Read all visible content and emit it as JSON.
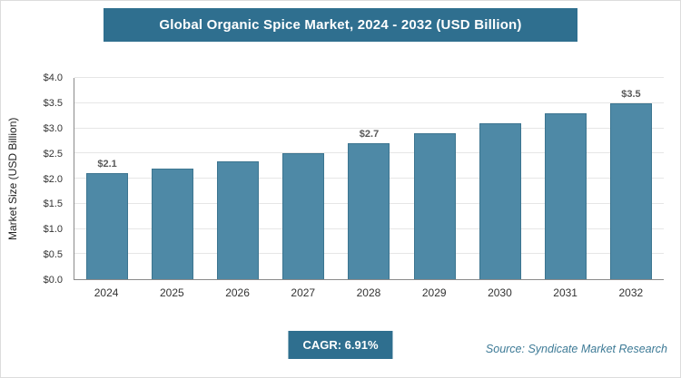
{
  "title": "Global Organic Spice Market, 2024 - 2032 (USD Billion)",
  "colors": {
    "banner": "#2f6f8f",
    "bar": "#4e89a6",
    "bar_border": "#3c7590",
    "accent_text": "#3d7a96"
  },
  "chart_data": {
    "type": "bar",
    "title": "Global Organic Spice Market, 2024 - 2032 (USD Billion)",
    "categories": [
      "2024",
      "2025",
      "2026",
      "2027",
      "2028",
      "2029",
      "2030",
      "2031",
      "2032"
    ],
    "values": [
      2.1,
      2.2,
      2.35,
      2.5,
      2.7,
      2.9,
      3.1,
      3.3,
      3.5
    ],
    "bar_labels": [
      "$2.1",
      null,
      null,
      null,
      "$2.7",
      null,
      null,
      null,
      "$3.5"
    ],
    "xlabel": "",
    "ylabel": "Market Size (USD Billion)",
    "ylim": [
      0,
      4.0
    ],
    "ytick_step": 0.5,
    "ytick_labels": [
      "$0.0",
      "$0.5",
      "$1.0",
      "$1.5",
      "$2.0",
      "$2.5",
      "$3.0",
      "$3.5",
      "$4.0"
    ],
    "grid": true,
    "legend": false
  },
  "footer": {
    "cagr_label": "CAGR: 6.91%",
    "source": "Source: Syndicate Market Research"
  }
}
